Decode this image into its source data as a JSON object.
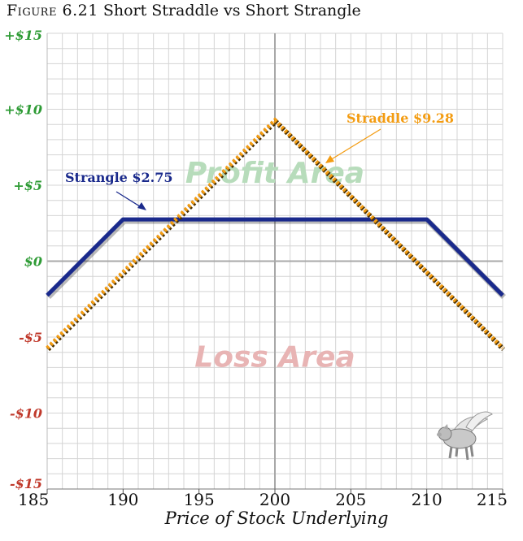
{
  "figure": {
    "label": "Figure 6.21",
    "title": "Short Straddle vs Short Strangle"
  },
  "chart_data": {
    "type": "line",
    "title": "Figure 6.21 Short Straddle vs Short Strangle",
    "xlabel": "Price of Stock Underlying",
    "ylabel": "",
    "xlim": [
      185,
      215
    ],
    "ylim": [
      -15,
      15
    ],
    "x_ticks": [
      185,
      190,
      195,
      200,
      205,
      210,
      215
    ],
    "x_tick_labels": [
      "185",
      "190",
      "195",
      "200",
      "205",
      "210",
      "215"
    ],
    "y_ticks": [
      15,
      10,
      5,
      0,
      -5,
      -10,
      -15
    ],
    "y_tick_labels": [
      "+$15",
      "+$10",
      "+$5",
      "$0",
      "-$5",
      "-$10",
      "-$15"
    ],
    "grid": true,
    "series": [
      {
        "name": "Strangle",
        "label": "Strangle $2.75",
        "premium": 2.75,
        "color": "#1a2a8c",
        "style": "solid",
        "x": [
          185,
          190,
          210,
          215
        ],
        "y": [
          -2.25,
          2.75,
          2.75,
          -2.25
        ]
      },
      {
        "name": "Straddle",
        "label": "Straddle $9.28",
        "premium": 9.28,
        "color": "#f39c12",
        "style": "dotted",
        "x": [
          185,
          200,
          215
        ],
        "y": [
          -5.72,
          9.28,
          -5.72
        ]
      }
    ],
    "annotations": [
      {
        "text": "Profit Area",
        "x": 200,
        "y": 5.8,
        "color": "#b7dcbb"
      },
      {
        "text": "Loss Area",
        "x": 200,
        "y": -6.3,
        "color": "#e8b4b4"
      }
    ],
    "colors": {
      "positive_tick": "#2e9b35",
      "zero_tick": "#2e9b35",
      "negative_tick": "#c0392b",
      "grid": "#d4d4d4",
      "axis": "#a8a8a8"
    }
  }
}
